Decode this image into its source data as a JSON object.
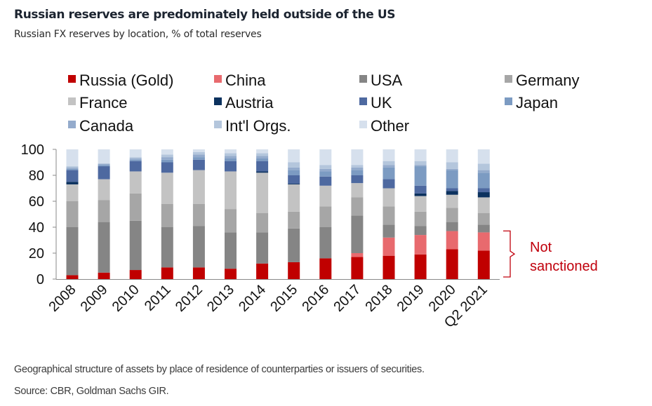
{
  "header": {
    "title": "Russian reserves are predominately held outside of the US",
    "subtitle": "Russian FX reserves by location, % of total reserves"
  },
  "footer": {
    "note": "Geographical structure of assets by place of residence of counterparties or issuers of securities.",
    "source": "Source: CBR, Goldman Sachs GIR."
  },
  "chart_data": {
    "type": "bar",
    "stacked": true,
    "title": "Russian reserves are predominately held outside of the US",
    "subtitle": "Russian FX reserves by location, % of total reserves",
    "xlabel": "",
    "ylabel": "",
    "ylim": [
      0,
      100
    ],
    "yticks": [
      0,
      20,
      40,
      60,
      80,
      100
    ],
    "grid": false,
    "legend_position": "top",
    "categories": [
      "2008",
      "2009",
      "2010",
      "2011",
      "2012",
      "2013",
      "2014",
      "2015",
      "2016",
      "2017",
      "2018",
      "2019",
      "2020",
      "Q2 2021"
    ],
    "series": [
      {
        "name": "Russia (Gold)",
        "color": "#c00000",
        "values": [
          3,
          5,
          7,
          9,
          9,
          8,
          12,
          13,
          16,
          17,
          18,
          19,
          23,
          22
        ]
      },
      {
        "name": "China",
        "color": "#e86a6e",
        "values": [
          0,
          0,
          0,
          0,
          0,
          0,
          0,
          0,
          0,
          3,
          14,
          15,
          14,
          14
        ]
      },
      {
        "name": "USA",
        "color": "#858585",
        "values": [
          37,
          39,
          38,
          31,
          32,
          28,
          24,
          26,
          24,
          29,
          10,
          7,
          7,
          6
        ]
      },
      {
        "name": "Germany",
        "color": "#a6a6a6",
        "values": [
          20,
          17,
          21,
          18,
          17,
          18,
          15,
          13,
          16,
          14,
          14,
          11,
          11,
          9
        ]
      },
      {
        "name": "France",
        "color": "#c3c3c3",
        "values": [
          13,
          16,
          17,
          24,
          26,
          29,
          31,
          21,
          16,
          11,
          14,
          12,
          10,
          12
        ]
      },
      {
        "name": "Austria",
        "color": "#0b315e",
        "values": [
          2,
          0,
          0,
          0,
          0,
          0,
          1,
          0.5,
          0,
          0,
          0,
          2,
          3,
          4
        ]
      },
      {
        "name": "UK",
        "color": "#4e69a0",
        "values": [
          9,
          10,
          8,
          8,
          8,
          8,
          8,
          6.5,
          7,
          6,
          7,
          6,
          2,
          3
        ]
      },
      {
        "name": "Japan",
        "color": "#7c9bc2",
        "values": [
          1,
          1,
          1,
          2,
          2,
          2,
          2,
          4,
          4,
          4,
          9,
          15,
          14,
          12
        ]
      },
      {
        "name": "Canada",
        "color": "#94abcc",
        "values": [
          1,
          1,
          1,
          2,
          2,
          2,
          2,
          2,
          2,
          2,
          2,
          1,
          1,
          2
        ]
      },
      {
        "name": "Int'l Orgs.",
        "color": "#b4c6dc",
        "values": [
          1,
          0,
          1,
          2,
          2,
          2,
          2,
          4,
          3,
          2,
          3,
          3,
          5,
          5
        ]
      },
      {
        "name": "Other",
        "color": "#d6e0ed",
        "values": [
          13,
          11,
          6,
          4,
          2,
          3,
          3,
          10,
          12,
          12,
          9,
          9,
          10,
          11
        ]
      }
    ],
    "annotations": [
      {
        "text_line1": "Not",
        "text_line2": "sanctioned",
        "color": "#c0000c",
        "brackets_series": [
          "Russia (Gold)",
          "China"
        ]
      }
    ]
  }
}
